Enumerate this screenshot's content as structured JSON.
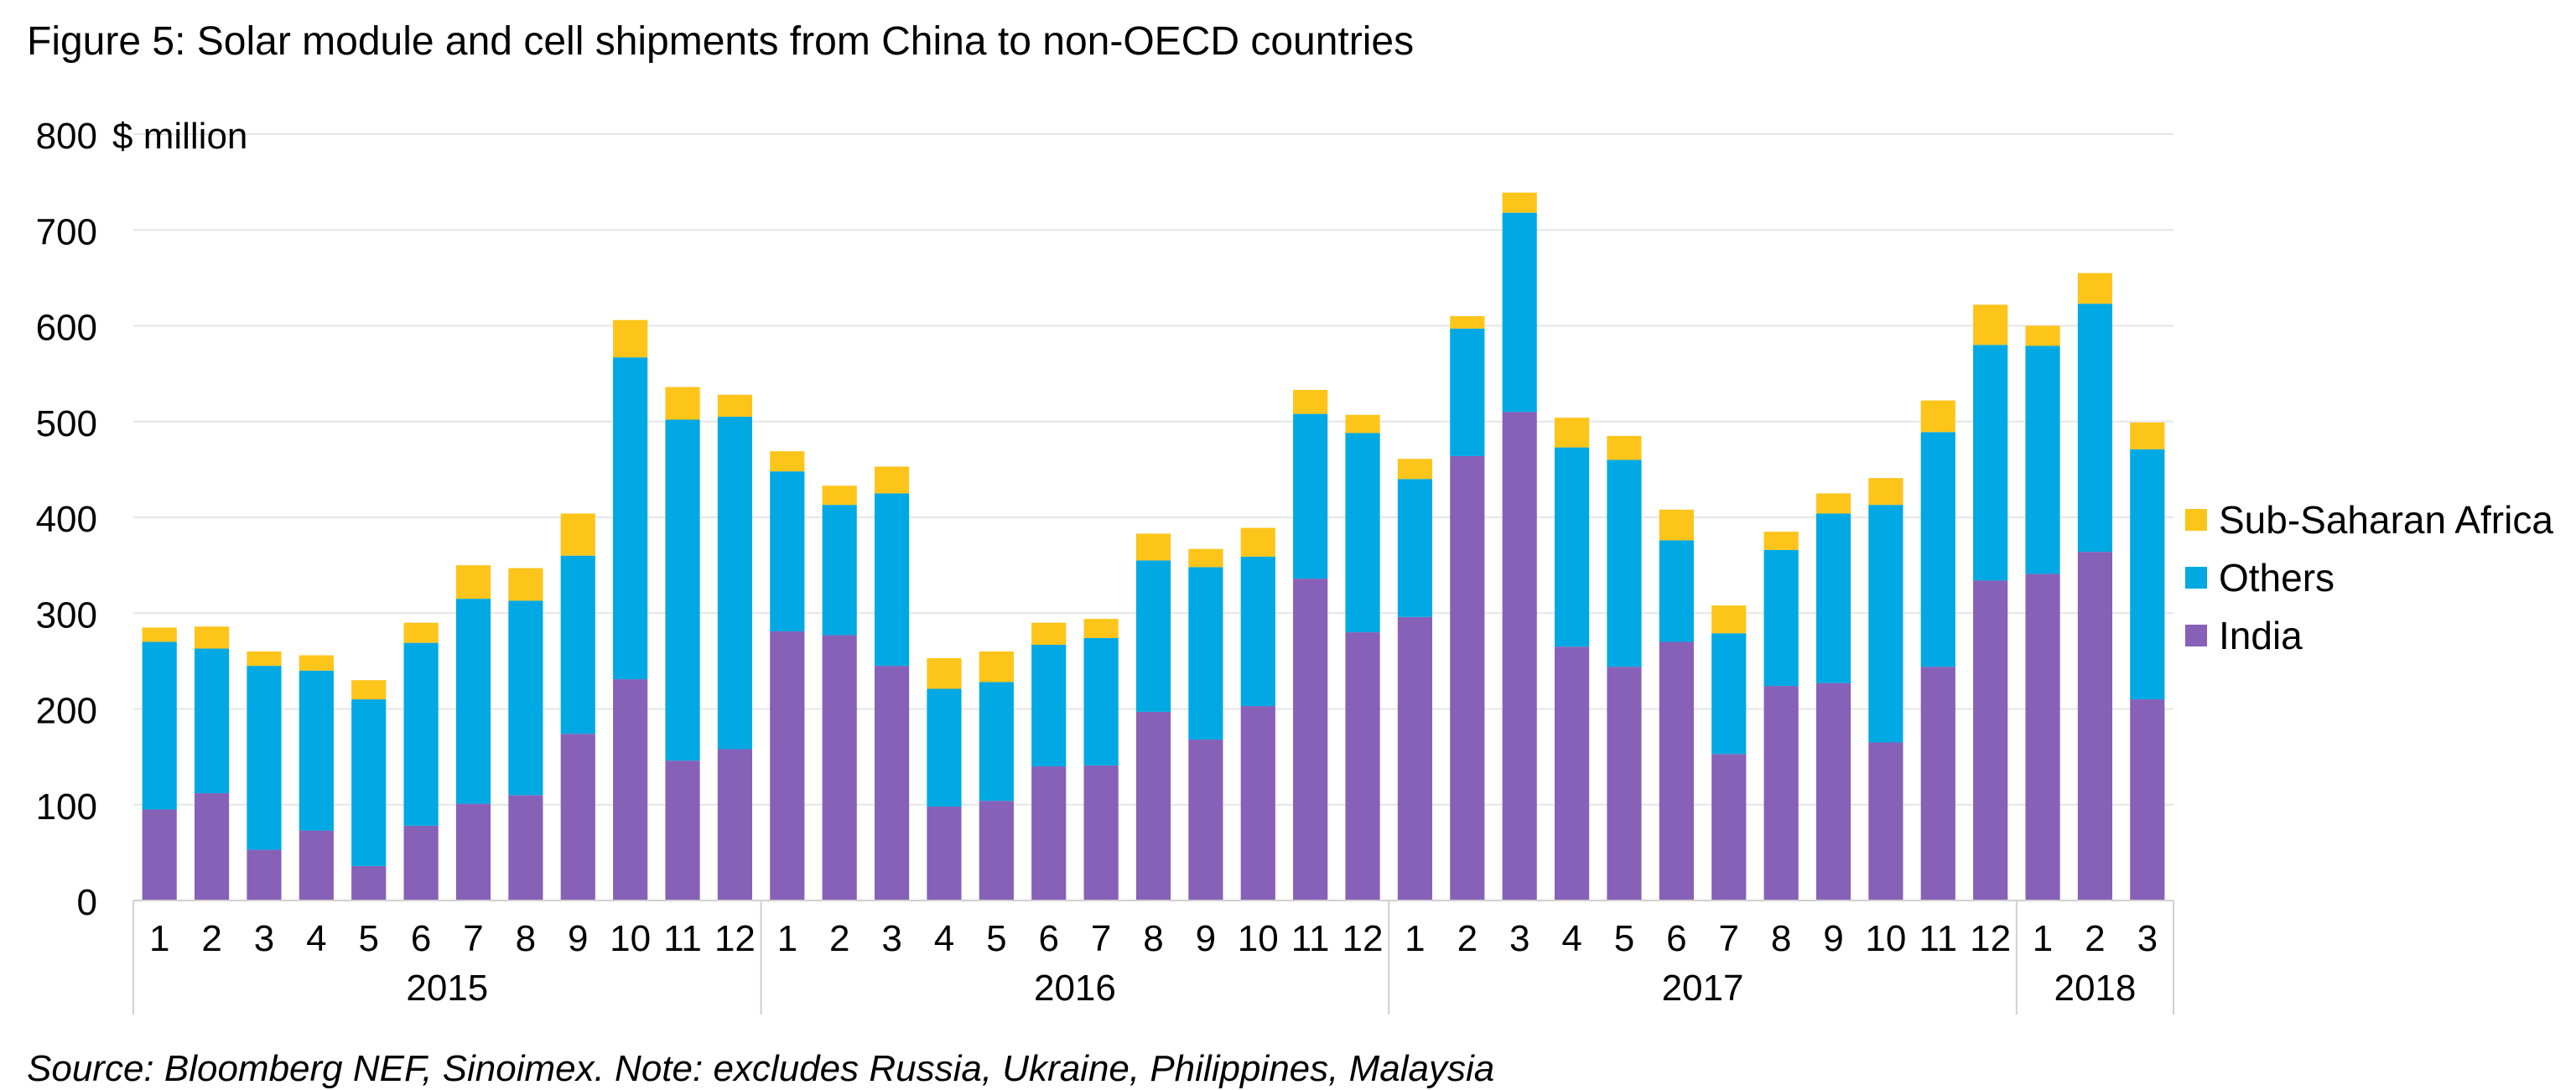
{
  "title": "Figure 5: Solar module and cell shipments from China to non-OECD countries",
  "source": "Source: Bloomberg NEF, Sinoimex. Note: excludes Russia, Ukraine, Philippines, Malaysia",
  "colors": {
    "India": "#8760b7",
    "Others": "#00a9e3",
    "Sub-Saharan Africa": "#fdc41a",
    "grid": "#e6e6e6",
    "axis": "#d0d0d0"
  },
  "chart_data": {
    "type": "bar",
    "stacked": true,
    "ylabel": "$ million",
    "ylim": [
      0,
      800
    ],
    "yticks": [
      0,
      100,
      200,
      300,
      400,
      500,
      600,
      700,
      800
    ],
    "grid": true,
    "legend_position": "right",
    "categories": [
      "1",
      "2",
      "3",
      "4",
      "5",
      "6",
      "7",
      "8",
      "9",
      "10",
      "11",
      "12",
      "1",
      "2",
      "3",
      "4",
      "5",
      "6",
      "7",
      "8",
      "9",
      "10",
      "11",
      "12",
      "1",
      "2",
      "3",
      "4",
      "5",
      "6",
      "7",
      "8",
      "9",
      "10",
      "11",
      "12",
      "1",
      "2",
      "3"
    ],
    "year_groups": [
      {
        "label": "2015",
        "count": 12
      },
      {
        "label": "2016",
        "count": 12
      },
      {
        "label": "2017",
        "count": 12
      },
      {
        "label": "2018",
        "count": 3
      }
    ],
    "series": [
      {
        "name": "India",
        "values": [
          95,
          112,
          53,
          73,
          36,
          78,
          101,
          110,
          174,
          231,
          146,
          158,
          281,
          277,
          245,
          98,
          104,
          140,
          141,
          197,
          168,
          203,
          336,
          280,
          296,
          464,
          510,
          265,
          244,
          270,
          153,
          224,
          227,
          165,
          244,
          334,
          341,
          364,
          210
        ]
      },
      {
        "name": "Others",
        "values": [
          175,
          151,
          192,
          167,
          174,
          191,
          214,
          203,
          186,
          336,
          356,
          347,
          167,
          136,
          180,
          123,
          124,
          127,
          133,
          158,
          180,
          156,
          172,
          208,
          144,
          133,
          208,
          208,
          216,
          106,
          126,
          142,
          177,
          248,
          245,
          246,
          238,
          259,
          261
        ]
      },
      {
        "name": "Sub-Saharan Africa",
        "values": [
          15,
          23,
          15,
          16,
          20,
          21,
          35,
          34,
          44,
          39,
          34,
          23,
          21,
          20,
          28,
          32,
          32,
          23,
          20,
          28,
          19,
          30,
          25,
          19,
          21,
          13,
          21,
          31,
          25,
          32,
          29,
          19,
          21,
          28,
          33,
          42,
          21,
          32,
          28
        ]
      }
    ],
    "legend_order": [
      "Sub-Saharan Africa",
      "Others",
      "India"
    ]
  }
}
